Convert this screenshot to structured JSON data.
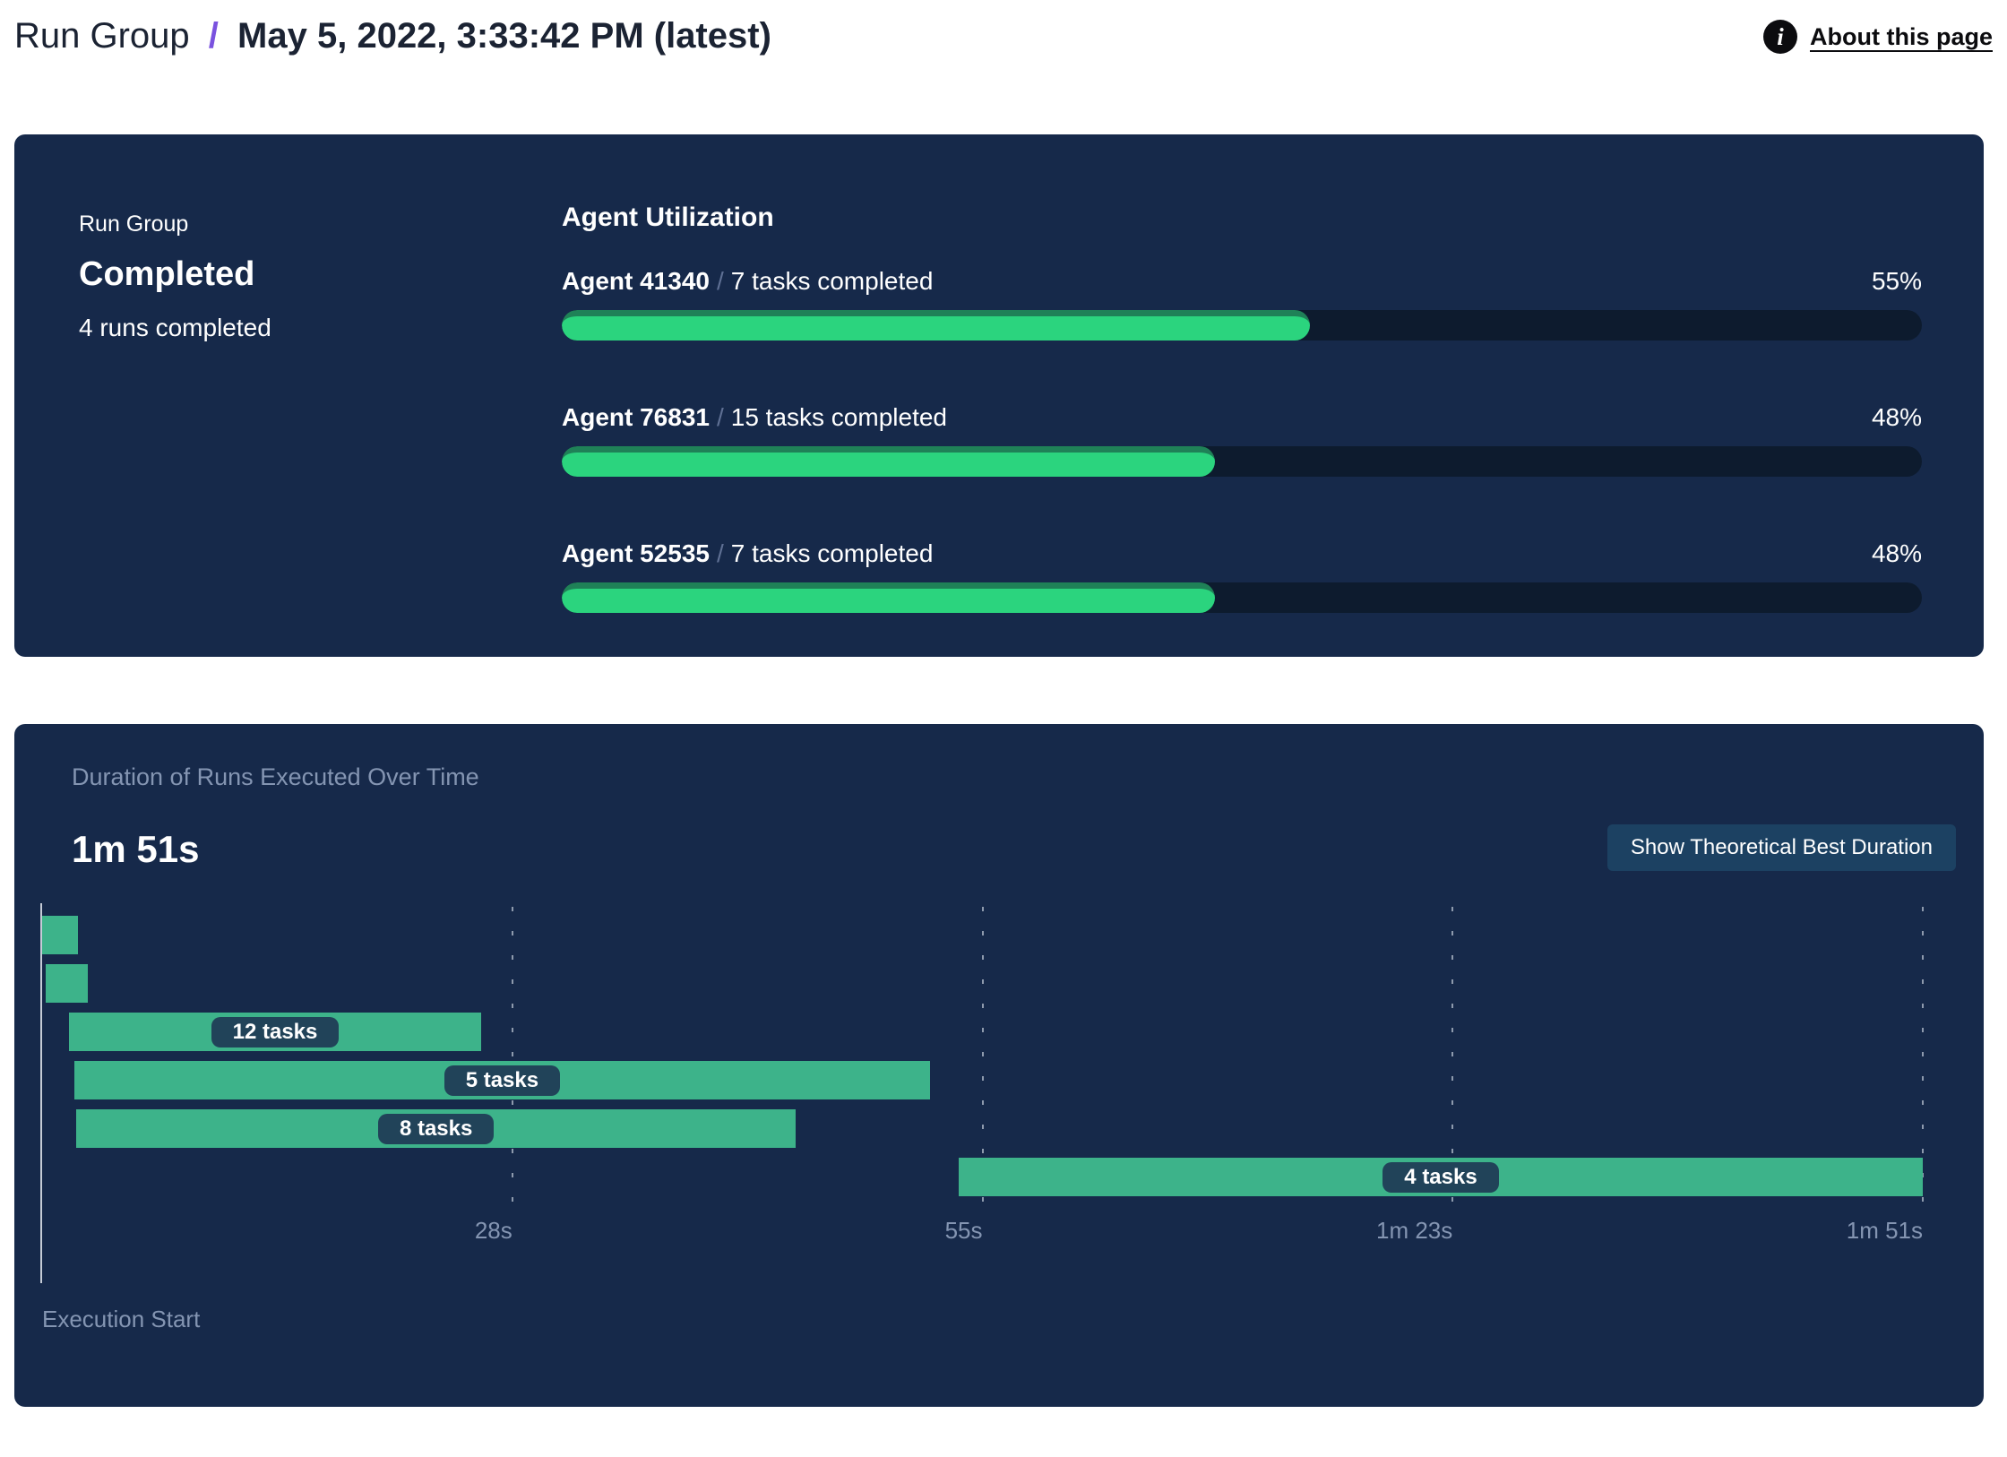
{
  "header": {
    "breadcrumb_root": "Run Group",
    "separator": "/",
    "title": "May 5, 2022, 3:33:42 PM (latest)",
    "about_link": "About this page",
    "info_icon": "info-icon"
  },
  "summary": {
    "label": "Run Group",
    "status": "Completed",
    "subtext": "4 runs completed"
  },
  "agent_utilization": {
    "title": "Agent Utilization",
    "separator": "/",
    "agents": [
      {
        "name": "Agent 41340",
        "tasks": "7 tasks completed",
        "percent": 55
      },
      {
        "name": "Agent 76831",
        "tasks": "15 tasks completed",
        "percent": 48
      },
      {
        "name": "Agent 52535",
        "tasks": "7 tasks completed",
        "percent": 48
      }
    ]
  },
  "duration_panel": {
    "title": "Duration of Runs Executed Over Time",
    "total_duration_label": "1m 51s",
    "button_label": "Show Theoretical Best Duration",
    "execution_start_label": "Execution Start"
  },
  "chart_data": {
    "type": "bar",
    "subtype": "gantt-timeline",
    "title": "Duration of Runs Executed Over Time",
    "xlabel": "Execution Start",
    "total_duration_s": 111,
    "total_duration_label": "1m 51s",
    "x_ticks": [
      {
        "time_s": 27.75,
        "label": "28s"
      },
      {
        "time_s": 55.5,
        "label": "55s"
      },
      {
        "time_s": 83.25,
        "label": "1m 23s"
      },
      {
        "time_s": 111,
        "label": "1m 51s"
      }
    ],
    "runs": [
      {
        "start_s": 0,
        "end_s": 2.1,
        "label": ""
      },
      {
        "start_s": 0.2,
        "end_s": 2.7,
        "label": ""
      },
      {
        "start_s": 1.6,
        "end_s": 25.9,
        "label": "12 tasks"
      },
      {
        "start_s": 1.9,
        "end_s": 52.4,
        "label": "5 tasks"
      },
      {
        "start_s": 2.0,
        "end_s": 44.5,
        "label": "8 tasks"
      },
      {
        "start_s": 54.1,
        "end_s": 111,
        "label": "4 tasks"
      }
    ],
    "grid": true,
    "legend": false
  },
  "colors": {
    "panel_bg": "#16294a",
    "page_bg": "#ffffff",
    "accent_purple": "#7a52df",
    "progress_fill": "#2bd47e",
    "progress_fill_edge": "#1f8157",
    "progress_track": "#0d1b2e",
    "gantt_bar": "#3db38a",
    "pill_bg": "#214359",
    "muted_text": "#8495b2",
    "button_bg": "#1c4162"
  }
}
